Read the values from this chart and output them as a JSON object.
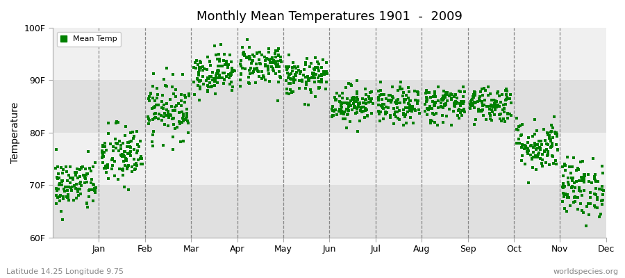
{
  "title": "Monthly Mean Temperatures 1901  -  2009",
  "ylabel": "Temperature",
  "subtitle_left": "Latitude 14.25 Longitude 9.75",
  "subtitle_right": "worldspecies.org",
  "months": [
    "Jan",
    "Feb",
    "Mar",
    "Apr",
    "May",
    "Jun",
    "Jul",
    "Aug",
    "Sep",
    "Oct",
    "Nov",
    "Dec"
  ],
  "ylim": [
    60,
    100
  ],
  "yticks": [
    60,
    70,
    80,
    90,
    100
  ],
  "ytick_labels": [
    "60F",
    "70F",
    "80F",
    "90F",
    "100F"
  ],
  "n_years": 109,
  "marker_color": "#008000",
  "marker_size": 5,
  "plot_bg": "#F0F0F0",
  "band_color": "#E0E0E0",
  "fig_bg": "#FFFFFF",
  "mean_temps_F": [
    70.0,
    75.5,
    84.5,
    91.5,
    93.0,
    90.5,
    85.5,
    85.0,
    85.5,
    85.5,
    77.5,
    69.5
  ],
  "std_temps_F": [
    2.5,
    3.0,
    2.8,
    2.0,
    2.0,
    1.8,
    1.8,
    1.8,
    1.8,
    1.8,
    2.5,
    2.8
  ]
}
